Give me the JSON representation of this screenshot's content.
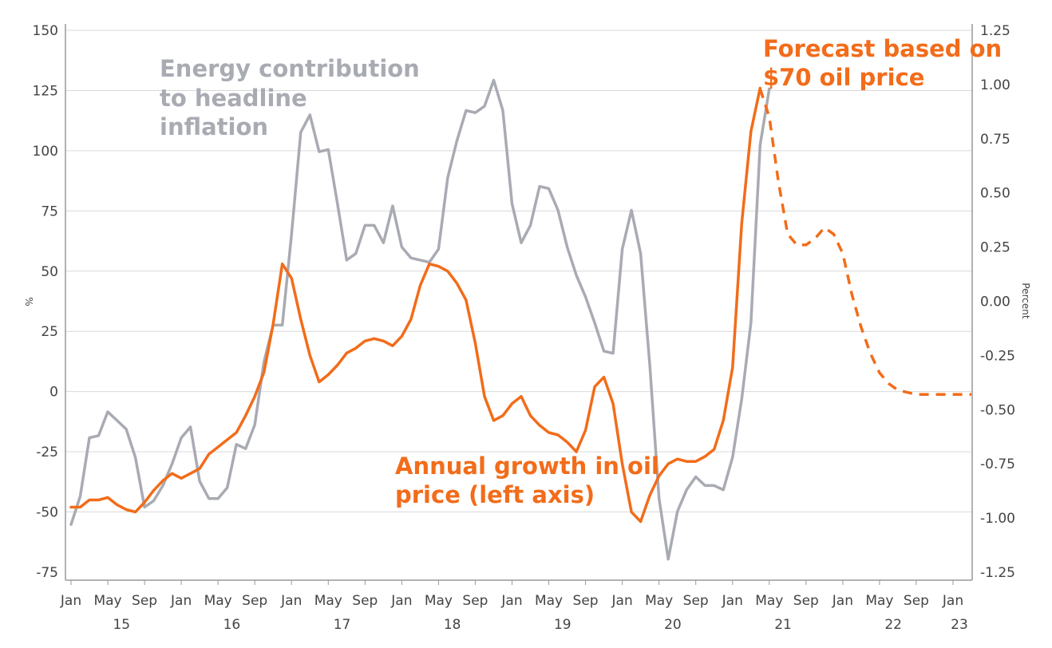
{
  "chart_data": {
    "type": "line",
    "title": "",
    "ylabel_left": "%",
    "ylabel_right": "Percent",
    "ylim_left": [
      -75,
      150
    ],
    "ylim_right": [
      -1.25,
      1.25
    ],
    "left_ticks": [
      "150",
      "125",
      "100",
      "75",
      "50",
      "25",
      "0",
      "-25",
      "-50",
      "-75"
    ],
    "right_ticks": [
      "1.25",
      "1.00",
      "0.75",
      "0.50",
      "0.25",
      "0.00",
      "-0.25",
      "-0.50",
      "-0.75",
      "-1.00",
      "-1.25"
    ],
    "x_month_ticks": [
      "Jan",
      "May",
      "Sep",
      "Jan",
      "May",
      "Sep",
      "Jan",
      "May",
      "Sep",
      "Jan",
      "May",
      "Sep",
      "Jan",
      "May",
      "Sep",
      "Jan",
      "May",
      "Sep",
      "Jan",
      "May",
      "Sep",
      "Jan",
      "May",
      "Sep",
      "Jan"
    ],
    "x_year_ticks": [
      "15",
      "16",
      "17",
      "18",
      "19",
      "20",
      "21",
      "22",
      "23"
    ],
    "grid": true,
    "annotations": {
      "energy": [
        "Energy contribution",
        "to headline",
        "inflation"
      ],
      "forecast": [
        "Forecast based on",
        "$70 oil price"
      ],
      "oil": [
        "Annual growth in oil",
        "price (left axis)"
      ]
    },
    "colors": {
      "oil": "#f26c1a",
      "energy": "#a9abb3",
      "grid": "#d9d9d9",
      "axis": "#999999"
    },
    "series": [
      {
        "name": "Annual growth in oil price (left axis)",
        "axis": "left",
        "start": "2015-01",
        "values": [
          -48,
          -48,
          -45,
          -45,
          -44,
          -47,
          -49,
          -50,
          -46,
          -41,
          -37,
          -34,
          -36,
          -34,
          -32,
          -26,
          -23,
          -20,
          -17,
          -10,
          -2,
          8,
          28,
          53,
          47,
          30,
          15,
          4,
          7,
          11,
          16,
          18,
          21,
          22,
          21,
          19,
          23,
          30,
          44,
          53,
          52,
          50,
          45,
          38,
          20,
          -2,
          -12,
          -10,
          -5,
          -2,
          -10,
          -14,
          -17,
          -18,
          -21,
          -25,
          -16,
          2,
          6,
          -5,
          -30,
          -50,
          -54,
          -43,
          -35,
          -30,
          -28,
          -29,
          -29,
          -27,
          -24,
          -12,
          10,
          70,
          108,
          126
        ]
      },
      {
        "name": "Energy contribution to headline inflation",
        "axis": "right",
        "start": "2015-01",
        "values": [
          -1.03,
          -0.9,
          -0.63,
          -0.62,
          -0.51,
          -0.55,
          -0.59,
          -0.72,
          -0.95,
          -0.92,
          -0.85,
          -0.75,
          -0.63,
          -0.58,
          -0.83,
          -0.91,
          -0.91,
          -0.86,
          -0.66,
          -0.68,
          -0.57,
          -0.28,
          -0.11,
          -0.11,
          0.31,
          0.78,
          0.86,
          0.69,
          0.7,
          0.45,
          0.19,
          0.22,
          0.35,
          0.35,
          0.27,
          0.44,
          0.25,
          0.2,
          0.19,
          0.18,
          0.24,
          0.57,
          0.74,
          0.88,
          0.87,
          0.9,
          1.02,
          0.88,
          0.45,
          0.27,
          0.35,
          0.53,
          0.52,
          0.42,
          0.25,
          0.12,
          0.02,
          -0.1,
          -0.23,
          -0.24,
          0.24,
          0.42,
          0.22,
          -0.3,
          -0.91,
          -1.19,
          -0.97,
          -0.87,
          -0.81,
          -0.85,
          -0.85,
          -0.87,
          -0.72,
          -0.45,
          -0.1,
          0.72,
          0.98
        ]
      },
      {
        "name": "Forecast based on $70 oil price",
        "axis": "right",
        "start": "2021-04",
        "dashed": true,
        "values": [
          0.98,
          0.85,
          0.55,
          0.31,
          0.26,
          0.26,
          0.29,
          0.34,
          0.31,
          0.22,
          0.03,
          -0.12,
          -0.24,
          -0.33,
          -0.38,
          -0.41,
          -0.42,
          -0.43,
          -0.43,
          -0.43,
          -0.43,
          -0.43,
          -0.43,
          -0.43
        ]
      }
    ]
  }
}
